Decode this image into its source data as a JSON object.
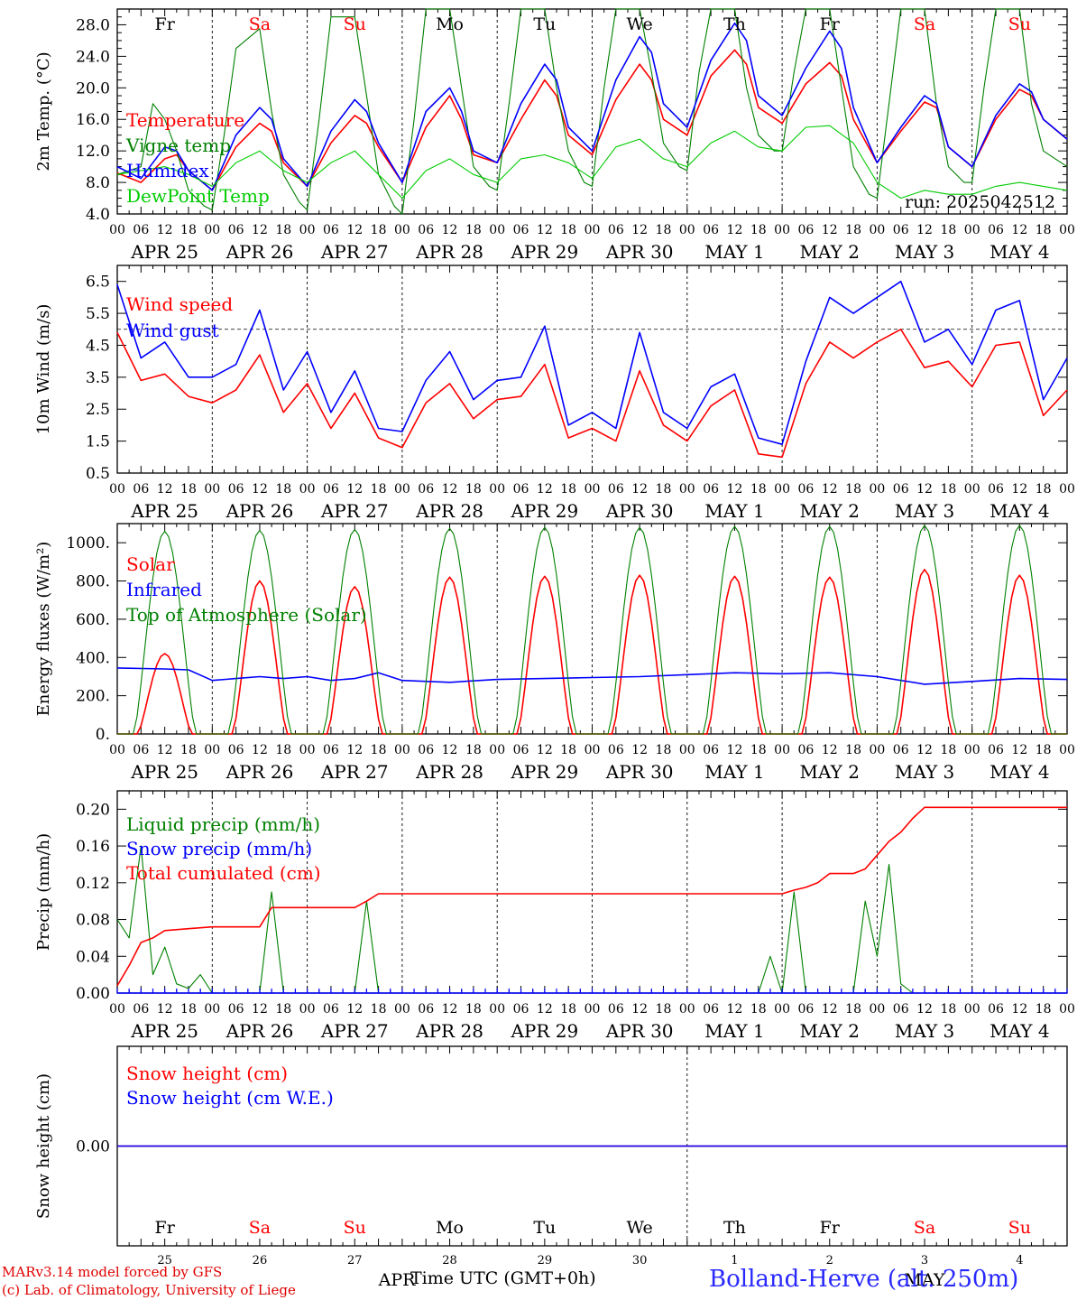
{
  "days": [
    {
      "dow": "Fr",
      "dow_color": "#000000",
      "label": "APR 25",
      "num": "25"
    },
    {
      "dow": "Sa",
      "dow_color": "#ff0000",
      "label": "APR 26",
      "num": "26"
    },
    {
      "dow": "Su",
      "dow_color": "#ff0000",
      "label": "APR 27",
      "num": "27"
    },
    {
      "dow": "Mo",
      "dow_color": "#000000",
      "label": "APR 28",
      "num": "28"
    },
    {
      "dow": "Tu",
      "dow_color": "#000000",
      "label": "APR 29",
      "num": "29"
    },
    {
      "dow": "We",
      "dow_color": "#000000",
      "label": "APR 30",
      "num": "30"
    },
    {
      "dow": "Th",
      "dow_color": "#000000",
      "label": "MAY  1",
      "num": "1"
    },
    {
      "dow": "Fr",
      "dow_color": "#000000",
      "label": "MAY  2",
      "num": "2"
    },
    {
      "dow": "Sa",
      "dow_color": "#ff0000",
      "label": "MAY  3",
      "num": "3"
    },
    {
      "dow": "Su",
      "dow_color": "#ff0000",
      "label": "MAY  4",
      "num": "4"
    }
  ],
  "hour_ticks": [
    "00",
    "06",
    "12",
    "18"
  ],
  "month_labels": [
    "APR",
    "MAY"
  ],
  "footer": {
    "credit_line1": "MARv3.14 model forced by GFS",
    "credit_line2": "(c) Lab. of Climatology, University of Liege",
    "xaxis_title": "Time UTC (GMT+0h)",
    "station": "Bolland-Herve (alt. 250m)"
  },
  "colors": {
    "red": "#ff0000",
    "blue": "#0000ff",
    "green": "#008000",
    "lightgreen": "#00cc00",
    "axis": "#000000"
  },
  "chart_data": [
    {
      "type": "line",
      "ylabel": "2m Temp. (°C)",
      "ylim": [
        4.0,
        30.0
      ],
      "yticks": [
        4.0,
        8.0,
        12.0,
        16.0,
        20.0,
        24.0,
        28.0
      ],
      "ytick_labels": [
        "4.0",
        "8.0",
        "12.0",
        "16.0",
        "20.0",
        "24.0",
        "28.0"
      ],
      "annotation": "run: 2025042512",
      "series": [
        {
          "name": "Temperature",
          "color": "#ff0000",
          "x": [
            0,
            6,
            12,
            15,
            18,
            24,
            30,
            36,
            39,
            42,
            48,
            54,
            60,
            63,
            66,
            72,
            78,
            84,
            87,
            90,
            96,
            102,
            108,
            111,
            114,
            120,
            126,
            132,
            135,
            138,
            144,
            150,
            156,
            159,
            162,
            168,
            174,
            180,
            183,
            186,
            192,
            198,
            204,
            207,
            210,
            216,
            222,
            228,
            231,
            234,
            240
          ],
          "y": [
            9.2,
            8.0,
            11.0,
            11.5,
            9.5,
            7.0,
            12.5,
            15.5,
            14.5,
            10.5,
            7.5,
            13.0,
            16.5,
            15.5,
            12.5,
            8.0,
            15.0,
            19.0,
            16.0,
            11.5,
            10.5,
            16.0,
            21.0,
            19.0,
            14.0,
            11.5,
            18.5,
            23.0,
            21.0,
            16.0,
            14.0,
            21.5,
            24.8,
            23.0,
            17.5,
            15.5,
            20.5,
            23.2,
            21.5,
            16.0,
            10.5,
            14.5,
            18.2,
            17.5,
            12.5,
            10.0,
            16.0,
            19.8,
            19.0,
            16.0,
            13.5
          ]
        },
        {
          "name": "Vigne temp",
          "color": "#008000",
          "x": [
            0,
            6,
            9,
            12,
            15,
            18,
            22,
            24,
            27,
            30,
            36,
            39,
            42,
            46,
            48,
            51,
            54,
            60,
            63,
            66,
            70,
            72,
            75,
            78,
            84,
            87,
            90,
            94,
            96,
            99,
            102,
            108,
            111,
            114,
            118,
            120,
            123,
            126,
            132,
            135,
            138,
            142,
            144,
            147,
            150,
            156,
            159,
            162,
            166,
            168,
            171,
            174,
            180,
            183,
            186,
            190,
            192,
            195,
            198,
            204,
            207,
            210,
            214,
            216,
            219,
            222,
            228,
            231,
            234,
            240
          ],
          "y": [
            9.0,
            10.0,
            18.0,
            16.0,
            12.0,
            7.0,
            5.0,
            4.5,
            14.0,
            25.0,
            27.5,
            17.0,
            9.0,
            5.5,
            4.5,
            16.0,
            29.0,
            29.0,
            19.0,
            9.0,
            5.0,
            4.0,
            16.0,
            30.0,
            30.0,
            20.0,
            10.0,
            7.5,
            7.0,
            18.0,
            30.0,
            30.0,
            20.0,
            12.0,
            8.0,
            7.5,
            20.0,
            30.0,
            30.0,
            22.0,
            13.0,
            10.0,
            9.5,
            22.0,
            30.0,
            30.0,
            20.0,
            14.0,
            12.0,
            12.0,
            22.0,
            30.0,
            30.0,
            20.0,
            10.0,
            6.5,
            6.0,
            18.0,
            30.0,
            30.0,
            18.0,
            10.0,
            8.0,
            8.0,
            20.0,
            30.0,
            30.0,
            18.0,
            12.0,
            10.0
          ]
        },
        {
          "name": "Humidex",
          "color": "#0000ff",
          "x": [
            0,
            6,
            12,
            15,
            18,
            24,
            30,
            36,
            39,
            42,
            48,
            54,
            60,
            63,
            66,
            72,
            78,
            84,
            87,
            90,
            96,
            102,
            108,
            111,
            114,
            120,
            126,
            132,
            135,
            138,
            144,
            150,
            156,
            159,
            162,
            168,
            174,
            180,
            183,
            186,
            192,
            198,
            204,
            207,
            210,
            216,
            222,
            228,
            231,
            234,
            240
          ],
          "y": [
            10.0,
            8.5,
            12.5,
            12.0,
            9.5,
            7.0,
            14.0,
            17.5,
            16.0,
            11.0,
            7.5,
            14.5,
            18.5,
            17.0,
            13.0,
            8.0,
            17.0,
            20.0,
            17.0,
            12.0,
            10.5,
            18.0,
            23.0,
            21.0,
            15.0,
            12.0,
            21.0,
            26.5,
            24.5,
            18.0,
            15.0,
            23.5,
            28.2,
            26.0,
            19.0,
            16.5,
            22.5,
            27.2,
            25.0,
            17.5,
            10.5,
            15.0,
            19.0,
            18.0,
            12.5,
            10.0,
            16.5,
            20.5,
            19.5,
            16.0,
            13.5
          ]
        },
        {
          "name": "DewPoint Temp",
          "color": "#00cc00",
          "x": [
            0,
            6,
            12,
            18,
            24,
            30,
            36,
            42,
            48,
            54,
            60,
            66,
            72,
            78,
            84,
            90,
            96,
            102,
            108,
            114,
            120,
            126,
            132,
            138,
            144,
            150,
            156,
            162,
            168,
            174,
            180,
            186,
            192,
            198,
            204,
            210,
            216,
            222,
            228,
            234,
            240
          ],
          "y": [
            9.0,
            9.5,
            10.0,
            9.0,
            7.5,
            10.5,
            12.0,
            9.5,
            8.0,
            10.5,
            12.0,
            9.0,
            6.0,
            9.5,
            11.0,
            9.0,
            8.0,
            11.0,
            11.5,
            10.5,
            8.5,
            12.5,
            13.5,
            11.0,
            10.0,
            13.0,
            14.5,
            12.5,
            12.0,
            15.0,
            15.2,
            13.0,
            8.0,
            6.0,
            7.0,
            6.5,
            6.5,
            7.5,
            8.0,
            7.5,
            7.0
          ]
        }
      ]
    },
    {
      "type": "line",
      "ylabel": "10m Wind (m/s)",
      "ylim": [
        0.5,
        7.0
      ],
      "yticks": [
        0.5,
        1.5,
        2.5,
        3.5,
        4.5,
        5.5,
        6.5
      ],
      "ytick_labels": [
        "0.5",
        "1.5",
        "2.5",
        "3.5",
        "4.5",
        "5.5",
        "6.5"
      ],
      "ref_line": 5.0,
      "series": [
        {
          "name": "Wind speed",
          "color": "#ff0000",
          "x": [
            0,
            6,
            12,
            18,
            24,
            30,
            36,
            42,
            48,
            54,
            60,
            66,
            72,
            78,
            84,
            90,
            96,
            102,
            108,
            114,
            120,
            126,
            132,
            138,
            144,
            150,
            156,
            162,
            168,
            174,
            180,
            186,
            192,
            198,
            204,
            210,
            216,
            222,
            228,
            234,
            240
          ],
          "y": [
            4.9,
            3.4,
            3.6,
            2.9,
            2.7,
            3.1,
            4.2,
            2.4,
            3.3,
            1.9,
            3.0,
            1.6,
            1.3,
            2.7,
            3.3,
            2.2,
            2.8,
            2.9,
            3.9,
            1.6,
            1.9,
            1.5,
            3.7,
            2.0,
            1.5,
            2.6,
            3.1,
            1.1,
            1.0,
            3.3,
            4.6,
            4.1,
            4.6,
            5.0,
            3.8,
            4.0,
            3.2,
            4.5,
            4.6,
            2.3,
            3.1
          ]
        },
        {
          "name": "Wind gust",
          "color": "#0000ff",
          "x": [
            0,
            6,
            12,
            18,
            24,
            30,
            36,
            42,
            48,
            54,
            60,
            66,
            72,
            78,
            84,
            90,
            96,
            102,
            108,
            114,
            120,
            126,
            132,
            138,
            144,
            150,
            156,
            162,
            168,
            174,
            180,
            186,
            192,
            198,
            204,
            210,
            216,
            222,
            228,
            234,
            240
          ],
          "y": [
            6.4,
            4.1,
            4.6,
            3.5,
            3.5,
            3.9,
            5.6,
            3.1,
            4.3,
            2.4,
            3.7,
            1.9,
            1.8,
            3.4,
            4.3,
            2.8,
            3.4,
            3.5,
            5.1,
            2.0,
            2.4,
            1.9,
            4.9,
            2.4,
            1.9,
            3.2,
            3.6,
            1.6,
            1.4,
            4.0,
            6.0,
            5.5,
            6.0,
            6.5,
            4.6,
            5.0,
            3.9,
            5.6,
            5.9,
            2.8,
            4.1
          ]
        }
      ]
    },
    {
      "type": "line",
      "ylabel": "Energy fluxes (W/m²)",
      "ylim": [
        0,
        1100
      ],
      "yticks": [
        0,
        200,
        400,
        600,
        800,
        1000
      ],
      "ytick_labels": [
        "0.",
        "200.",
        "400.",
        "600.",
        "800.",
        "1000."
      ],
      "series": [
        {
          "name": "Solar",
          "color": "#ff0000",
          "shape": "daily",
          "peaks": [
            420,
            800,
            770,
            820,
            825,
            830,
            825,
            820,
            860,
            830
          ]
        },
        {
          "name": "Infrared",
          "color": "#0000ff",
          "x": [
            0,
            12,
            18,
            24,
            30,
            36,
            42,
            48,
            54,
            60,
            66,
            72,
            84,
            96,
            108,
            120,
            132,
            144,
            156,
            168,
            180,
            192,
            204,
            216,
            228,
            240
          ],
          "y": [
            345,
            340,
            335,
            280,
            290,
            300,
            290,
            300,
            280,
            290,
            320,
            280,
            270,
            285,
            290,
            295,
            300,
            310,
            320,
            315,
            320,
            300,
            260,
            275,
            290,
            285
          ]
        },
        {
          "name": "Top of Atmosphere (Solar)",
          "color": "#008000",
          "shape": "daily",
          "peaks": [
            1060,
            1065,
            1070,
            1075,
            1080,
            1080,
            1085,
            1085,
            1090,
            1090
          ]
        }
      ]
    },
    {
      "type": "line",
      "ylabel": "Precip (mm/h)",
      "ylim": [
        0,
        0.22
      ],
      "yticks": [
        0,
        0.04,
        0.08,
        0.12,
        0.16,
        0.2
      ],
      "ytick_labels": [
        "0.00",
        "0.04",
        "0.08",
        "0.12",
        "0.16",
        "0.20"
      ],
      "series": [
        {
          "name": "Liquid precip (mm/h)",
          "color": "#008000",
          "x": [
            0,
            3,
            6,
            9,
            12,
            15,
            18,
            21,
            24,
            36,
            39,
            42,
            45,
            48,
            60,
            63,
            66,
            69,
            72,
            162,
            165,
            168,
            171,
            174,
            177,
            180,
            186,
            189,
            192,
            195,
            198,
            201,
            204,
            240
          ],
          "y": [
            0.08,
            0.06,
            0.16,
            0.02,
            0.05,
            0.01,
            0.005,
            0.02,
            0.0,
            0.0,
            0.11,
            0.0,
            0.0,
            0.0,
            0.0,
            0.1,
            0.0,
            0.0,
            0.0,
            0.0,
            0.04,
            0.0,
            0.11,
            0.0,
            0.0,
            0.0,
            0.0,
            0.1,
            0.04,
            0.14,
            0.01,
            0.0,
            0.0,
            0.0
          ]
        },
        {
          "name": "Snow precip (mm/h)",
          "color": "#0000ff",
          "x": [
            0,
            240
          ],
          "y": [
            0,
            0
          ]
        },
        {
          "name": "Total cumulated (cm)",
          "color": "#ff0000",
          "x": [
            0,
            3,
            6,
            9,
            12,
            18,
            24,
            36,
            39,
            48,
            60,
            63,
            66,
            72,
            168,
            171,
            174,
            177,
            180,
            186,
            189,
            192,
            195,
            198,
            201,
            204,
            210,
            240
          ],
          "y": [
            0.008,
            0.03,
            0.055,
            0.06,
            0.068,
            0.07,
            0.072,
            0.072,
            0.093,
            0.093,
            0.093,
            0.1,
            0.108,
            0.108,
            0.108,
            0.112,
            0.115,
            0.12,
            0.13,
            0.13,
            0.135,
            0.15,
            0.165,
            0.175,
            0.19,
            0.202,
            0.202,
            0.202
          ]
        }
      ]
    },
    {
      "type": "line",
      "ylabel": "Snow height (cm)",
      "ylim": [
        -1,
        1
      ],
      "yticks": [
        0
      ],
      "ytick_labels": [
        "0.00"
      ],
      "series": [
        {
          "name": "Snow height (cm)",
          "color": "#ff0000",
          "x": [
            0,
            240
          ],
          "y": [
            0,
            0
          ]
        },
        {
          "name": "Snow height (cm W.E.)",
          "color": "#0000ff",
          "x": [
            0,
            240
          ],
          "y": [
            0,
            0
          ]
        }
      ]
    }
  ]
}
